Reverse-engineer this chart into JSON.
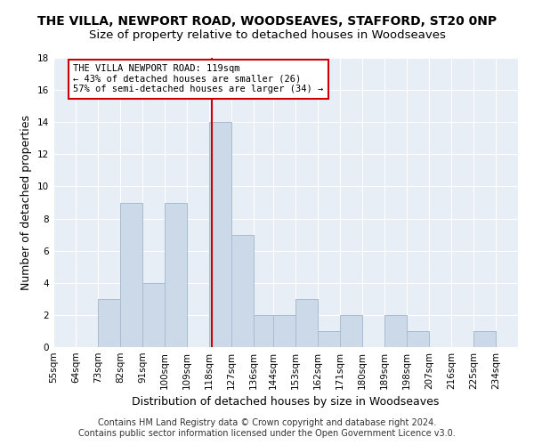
{
  "title": "THE VILLA, NEWPORT ROAD, WOODSEAVES, STAFFORD, ST20 0NP",
  "subtitle": "Size of property relative to detached houses in Woodseaves",
  "xlabel": "Distribution of detached houses by size in Woodseaves",
  "ylabel": "Number of detached properties",
  "footnote1": "Contains HM Land Registry data © Crown copyright and database right 2024.",
  "footnote2": "Contains public sector information licensed under the Open Government Licence v3.0.",
  "bin_labels": [
    "55sqm",
    "64sqm",
    "73sqm",
    "82sqm",
    "91sqm",
    "100sqm",
    "109sqm",
    "118sqm",
    "127sqm",
    "136sqm",
    "144sqm",
    "153sqm",
    "162sqm",
    "171sqm",
    "180sqm",
    "189sqm",
    "198sqm",
    "207sqm",
    "216sqm",
    "225sqm",
    "234sqm"
  ],
  "bin_edges": [
    55,
    64,
    73,
    82,
    91,
    100,
    109,
    118,
    127,
    136,
    144,
    153,
    162,
    171,
    180,
    189,
    198,
    207,
    216,
    225,
    234
  ],
  "bar_heights": [
    0,
    0,
    3,
    9,
    4,
    9,
    0,
    14,
    7,
    2,
    2,
    3,
    1,
    2,
    0,
    2,
    1,
    0,
    0,
    1,
    0
  ],
  "bar_color": "#ccd9e8",
  "bar_edge_color": "#a8bcd0",
  "vline_x": 119,
  "vline_color": "#cc0000",
  "annotation_text": "THE VILLA NEWPORT ROAD: 119sqm\n← 43% of detached houses are smaller (26)\n57% of semi-detached houses are larger (34) →",
  "annotation_box_color": "white",
  "annotation_box_edge": "#cc0000",
  "ylim": [
    0,
    18
  ],
  "yticks": [
    0,
    2,
    4,
    6,
    8,
    10,
    12,
    14,
    16,
    18
  ],
  "background_color": "#ffffff",
  "plot_bg_color": "#e8eef5",
  "grid_color": "#ffffff",
  "title_fontsize": 10,
  "subtitle_fontsize": 9.5,
  "xlabel_fontsize": 9,
  "ylabel_fontsize": 9,
  "tick_fontsize": 7.5,
  "footnote_fontsize": 7,
  "annot_fontsize": 7.5
}
